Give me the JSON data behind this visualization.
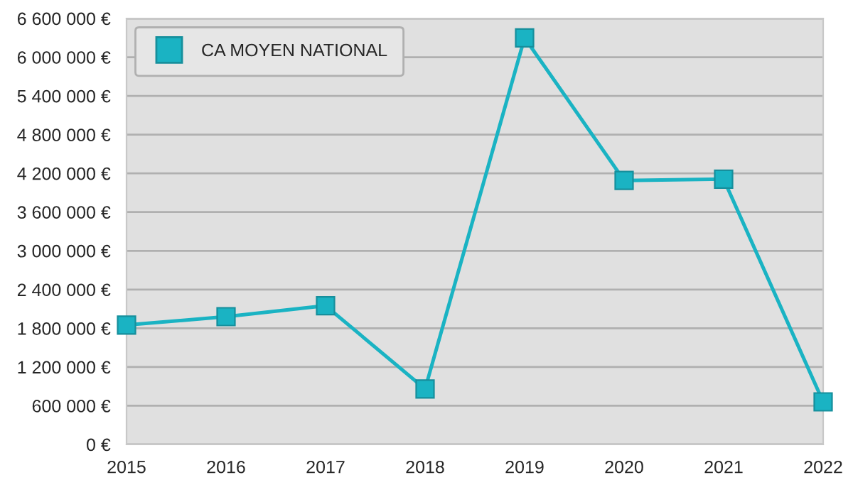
{
  "chart_data": {
    "type": "line",
    "x": [
      2015,
      2016,
      2017,
      2018,
      2019,
      2020,
      2021,
      2022
    ],
    "series": [
      {
        "name": "CA MOYEN NATIONAL",
        "color": "#1ab3c3",
        "values": [
          1850000,
          1980000,
          2150000,
          860000,
          6300000,
          4090000,
          4110000,
          660000
        ]
      }
    ],
    "xlim": [
      2015,
      2022
    ],
    "xticks": [
      2015,
      2016,
      2017,
      2018,
      2019,
      2020,
      2021,
      2022
    ],
    "ylim": [
      0,
      6600000
    ],
    "yticks": [
      {
        "value": 0,
        "label": "0 €"
      },
      {
        "value": 600000,
        "label": "600 000 €"
      },
      {
        "value": 1200000,
        "label": "1 200 000 €"
      },
      {
        "value": 1800000,
        "label": "1 800 000 €"
      },
      {
        "value": 2400000,
        "label": "2 400 000 €"
      },
      {
        "value": 3000000,
        "label": "3 000 000 €"
      },
      {
        "value": 3600000,
        "label": "3 600 000 €"
      },
      {
        "value": 4200000,
        "label": "4 200 000 €"
      },
      {
        "value": 4800000,
        "label": "4 800 000 €"
      },
      {
        "value": 5400000,
        "label": "5 400 000 €"
      },
      {
        "value": 6000000,
        "label": "6 000 000 €"
      },
      {
        "value": 6600000,
        "label": "6 600 000 €"
      }
    ],
    "grid": "y",
    "legend": "top left",
    "marker": "square",
    "line_style": "solid"
  }
}
